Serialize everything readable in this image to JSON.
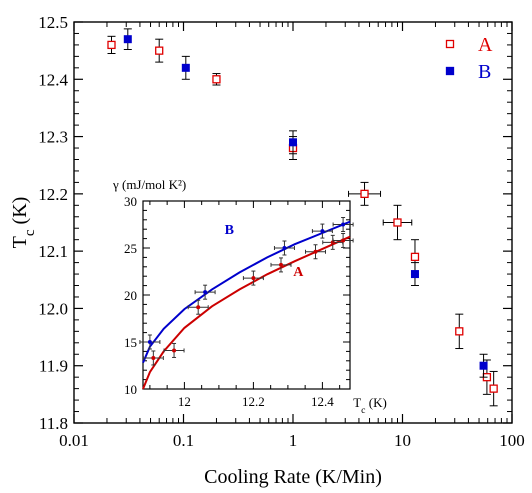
{
  "chart_data": [
    {
      "type": "scatter",
      "title": "",
      "xlabel": "Cooling Rate (K/Min)",
      "ylabel": "T_c (K)",
      "xscale": "log",
      "xlim": [
        0.01,
        100
      ],
      "ylim": [
        11.8,
        12.5
      ],
      "xticks": [
        0.01,
        0.1,
        1,
        10,
        100
      ],
      "xtick_labels": [
        "0.01",
        "0.1",
        "1",
        "10",
        "100"
      ],
      "yticks": [
        11.8,
        11.9,
        12.0,
        12.1,
        12.2,
        12.3,
        12.4,
        12.5
      ],
      "ytick_labels": [
        "11.8",
        "11.9",
        "12.0",
        "12.1",
        "12.2",
        "12.3",
        "12.4",
        "12.5"
      ],
      "legend": {
        "position": "top-right"
      },
      "series": [
        {
          "name": "A",
          "color": "#e00000",
          "marker": "open-square",
          "points": [
            {
              "x": 0.022,
              "y": 12.46,
              "yerr": 0.015
            },
            {
              "x": 0.06,
              "y": 12.45,
              "yerr": 0.02
            },
            {
              "x": 0.2,
              "y": 12.4,
              "yerr": 0.01
            },
            {
              "x": 1.0,
              "y": 12.28,
              "yerr": 0.02
            },
            {
              "x": 4.5,
              "y": 12.2,
              "yerr": 0.02,
              "xerr_factor": 1.4
            },
            {
              "x": 9.0,
              "y": 12.15,
              "yerr": 0.03,
              "xerr_factor": 1.35
            },
            {
              "x": 13.0,
              "y": 12.09,
              "yerr": 0.03
            },
            {
              "x": 33.0,
              "y": 11.96,
              "yerr": 0.03
            },
            {
              "x": 59.0,
              "y": 11.88,
              "yerr": 0.03
            },
            {
              "x": 68.0,
              "y": 11.86,
              "yerr": 0.03
            }
          ]
        },
        {
          "name": "B",
          "color": "#0000cc",
          "marker": "filled-square",
          "points": [
            {
              "x": 0.031,
              "y": 12.47,
              "yerr": 0.018
            },
            {
              "x": 0.105,
              "y": 12.42,
              "yerr": 0.02
            },
            {
              "x": 1.0,
              "y": 12.29,
              "yerr": 0.02
            },
            {
              "x": 13.0,
              "y": 12.06,
              "yerr": 0.02
            },
            {
              "x": 55.0,
              "y": 11.9,
              "yerr": 0.02
            }
          ]
        }
      ]
    },
    {
      "type": "scatter",
      "title": "",
      "ylabel": "γ (mJ/mol K²)",
      "xlabel": "T_c (K)",
      "xlim": [
        11.88,
        12.48
      ],
      "ylim": [
        10,
        30
      ],
      "xticks": [
        12.0,
        12.2,
        12.4
      ],
      "xtick_labels": [
        "12",
        "12.2",
        "12.4"
      ],
      "yticks": [
        10,
        15,
        20,
        25,
        30
      ],
      "ytick_labels": [
        "10",
        "15",
        "20",
        "25",
        "30"
      ],
      "series": [
        {
          "name": "A",
          "color": "#cc0000",
          "marker": "cross-errorbar",
          "points": [
            {
              "x": 11.91,
              "y": 13.3
            },
            {
              "x": 11.97,
              "y": 14.1
            },
            {
              "x": 12.04,
              "y": 18.7
            },
            {
              "x": 12.2,
              "y": 21.8
            },
            {
              "x": 12.28,
              "y": 23.2
            },
            {
              "x": 12.38,
              "y": 24.6
            },
            {
              "x": 12.43,
              "y": 25.6
            },
            {
              "x": 12.46,
              "y": 25.8
            }
          ],
          "fit_curve": [
            {
              "x": 11.88,
              "y": 10.0
            },
            {
              "x": 11.9,
              "y": 11.8
            },
            {
              "x": 11.94,
              "y": 14.0
            },
            {
              "x": 12.0,
              "y": 16.5
            },
            {
              "x": 12.08,
              "y": 18.8
            },
            {
              "x": 12.16,
              "y": 20.6
            },
            {
              "x": 12.24,
              "y": 22.2
            },
            {
              "x": 12.32,
              "y": 23.6
            },
            {
              "x": 12.4,
              "y": 24.9
            },
            {
              "x": 12.48,
              "y": 26.2
            }
          ]
        },
        {
          "name": "B",
          "color": "#0000cc",
          "marker": "cross-errorbar",
          "points": [
            {
              "x": 11.9,
              "y": 15.0
            },
            {
              "x": 12.06,
              "y": 20.3
            },
            {
              "x": 12.29,
              "y": 25.0
            },
            {
              "x": 12.4,
              "y": 26.8
            },
            {
              "x": 12.46,
              "y": 27.5
            }
          ],
          "fit_curve": [
            {
              "x": 11.88,
              "y": 12.8
            },
            {
              "x": 11.9,
              "y": 14.5
            },
            {
              "x": 11.94,
              "y": 16.4
            },
            {
              "x": 12.0,
              "y": 18.5
            },
            {
              "x": 12.08,
              "y": 20.6
            },
            {
              "x": 12.16,
              "y": 22.4
            },
            {
              "x": 12.24,
              "y": 24.0
            },
            {
              "x": 12.32,
              "y": 25.4
            },
            {
              "x": 12.4,
              "y": 26.6
            },
            {
              "x": 12.48,
              "y": 27.8
            }
          ]
        }
      ]
    }
  ]
}
